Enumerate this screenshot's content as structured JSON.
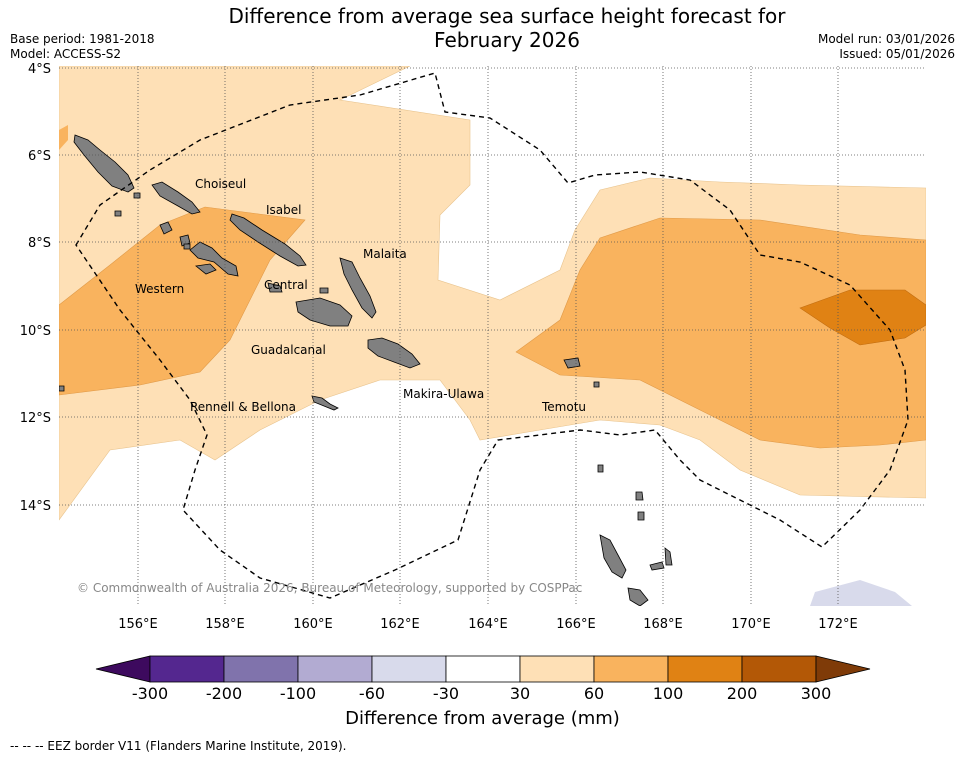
{
  "title_line1": "Difference from average sea surface height forecast for",
  "title_line2": "February 2026",
  "base_period": "Base period: 1981-2018",
  "model": "Model: ACCESS-S2",
  "model_run": "Model run: 03/01/2026",
  "issued": "Issued: 05/01/2026",
  "lat_ticks": [
    "4°S",
    "6°S",
    "8°S",
    "10°S",
    "12°S",
    "14°S"
  ],
  "lon_ticks": [
    "156°E",
    "158°E",
    "160°E",
    "162°E",
    "164°E",
    "166°E",
    "168°E",
    "170°E",
    "172°E"
  ],
  "province_labels": [
    "Choiseul",
    "Isabel",
    "Malaita",
    "Western",
    "Central",
    "Guadalcanal",
    "Makira-Ulawa",
    "Rennell & Bellona",
    "Temotu"
  ],
  "credit": "© Commonwealth of Australia 2026, Bureau of Meteorology, supported by COSPPac",
  "colorbar": {
    "label": "Difference from average (mm)",
    "ticks": [
      "-300",
      "-200",
      "-100",
      "-60",
      "-30",
      "30",
      "60",
      "100",
      "200",
      "300"
    ],
    "colors": [
      "#3d0a5e",
      "#54278f",
      "#8073ac",
      "#b2abd2",
      "#d8daeb",
      "#ffffff",
      "#fee0b6",
      "#f9b35e",
      "#e08214",
      "#b35806",
      "#7f3b08"
    ]
  },
  "footer": "--  --  -- EEZ border V11 (Flanders Marine Institute, 2019)."
}
